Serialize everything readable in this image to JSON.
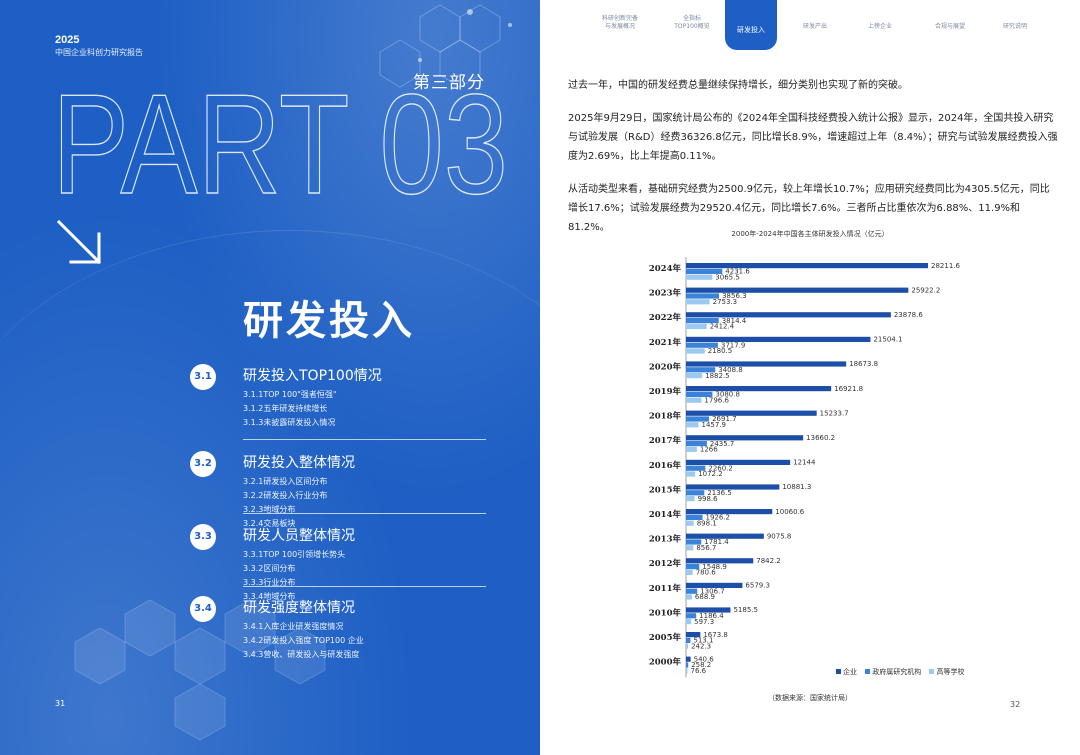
{
  "left": {
    "year": "2025",
    "report_title": "中国企业科创力研究报告",
    "part_cn": "第三部分",
    "part_big": "PART 03",
    "section_title": "研发投入",
    "sections": [
      {
        "num": "3.1",
        "title": "研发投入TOP100情况",
        "items": [
          "3.1.1TOP 100\"强者恒强\"",
          "3.1.2五年研发持续增长",
          "3.1.3未披露研发投入情况"
        ]
      },
      {
        "num": "3.2",
        "title": "研发投入整体情况",
        "items_a": [
          "3.2.1研发投入区间分布",
          "3.2.2研发投入行业分布"
        ],
        "items_b": [
          "3.2.3地域分布",
          "3.2.4交易板块"
        ]
      },
      {
        "num": "3.3",
        "title": "研发人员整体情况",
        "items_a": [
          "3.3.1TOP 100引领增长势头",
          "3.3.2区间分布"
        ],
        "items_b": [
          "3.3.3行业分布",
          "3.3.4地域分布"
        ]
      },
      {
        "num": "3.4",
        "title": "研发强度整体情况",
        "items": [
          "3.4.1入库企业研发强度情况",
          "3.4.2研发投入强度 TOP100 企业",
          "3.4.3营收、研发投入与研发强度"
        ]
      }
    ],
    "page_number": "31"
  },
  "right": {
    "nav_tabs": [
      {
        "label": "科研创新完备\n与发展概况",
        "active": false
      },
      {
        "label": "全指标\nTOP100概览",
        "active": false
      },
      {
        "label": "研发投入",
        "active": true
      },
      {
        "label": "研发产出",
        "active": false
      },
      {
        "label": "上榜企业",
        "active": false
      },
      {
        "label": "合规与展望",
        "active": false
      },
      {
        "label": "研究说明",
        "active": false
      }
    ],
    "paragraphs": [
      "过去一年，中国的研发经费总量继续保持增长，细分类别也实现了新的突破。",
      "2025年9月29日，国家统计局公布的《2024年全国科技经费投入统计公报》显示，2024年，全国共投入研究与试验发展（R&D）经费36326.8亿元，同比增长8.9%，增速超过上年（8.4%）；研究与试验发展经费投入强度为2.69%，比上年提高0.11%。",
      "从活动类型来看，基础研究经费为2500.9亿元，较上年增长10.7%；应用研究经费同比为4305.5亿元，同比增长17.6%；试验发展经费为29520.4亿元，同比增长7.6%。三者所占比重依次为6.88%、11.9%和81.2%。"
    ],
    "chart_title": "2000年-2024年中国各主体研发投入情况（亿元）",
    "source": "（数据来源：国家统计局）",
    "page_number": "32"
  },
  "chart_data": {
    "type": "bar",
    "orientation": "horizontal",
    "title": "2000年-2024年中国各主体研发投入情况（亿元）",
    "categories": [
      "2024年",
      "2023年",
      "2022年",
      "2021年",
      "2020年",
      "2019年",
      "2018年",
      "2017年",
      "2016年",
      "2015年",
      "2014年",
      "2013年",
      "2012年",
      "2011年",
      "2010年",
      "2005年",
      "2000年"
    ],
    "series": [
      {
        "name": "企业",
        "color": "#1d4fa8",
        "values": [
          28211.6,
          25922.2,
          23878.6,
          21504.1,
          18673.8,
          16921.8,
          15233.7,
          13660.2,
          12144,
          10881.3,
          10060.6,
          9075.8,
          7842.2,
          6579.3,
          5185.5,
          1673.8,
          540.6
        ]
      },
      {
        "name": "政府属研究机构",
        "color": "#3a83d9",
        "values": [
          4231.6,
          3856.3,
          3814.4,
          3717.9,
          3408.8,
          3080.8,
          2691.7,
          2435.7,
          2260.2,
          2136.5,
          1926.2,
          1781.4,
          1548.9,
          1306.7,
          1186.4,
          513.1,
          258.2
        ]
      },
      {
        "name": "高等学校",
        "color": "#9cc9ef",
        "values": [
          3065.5,
          2753.3,
          2412.4,
          2180.5,
          1882.5,
          1796.6,
          1457.9,
          1266,
          1072.2,
          998.6,
          898.1,
          856.7,
          780.6,
          688.9,
          597.3,
          242.3,
          76.6
        ]
      }
    ],
    "xlim": [
      0,
      28211.6
    ],
    "legend": "bottom-right"
  }
}
